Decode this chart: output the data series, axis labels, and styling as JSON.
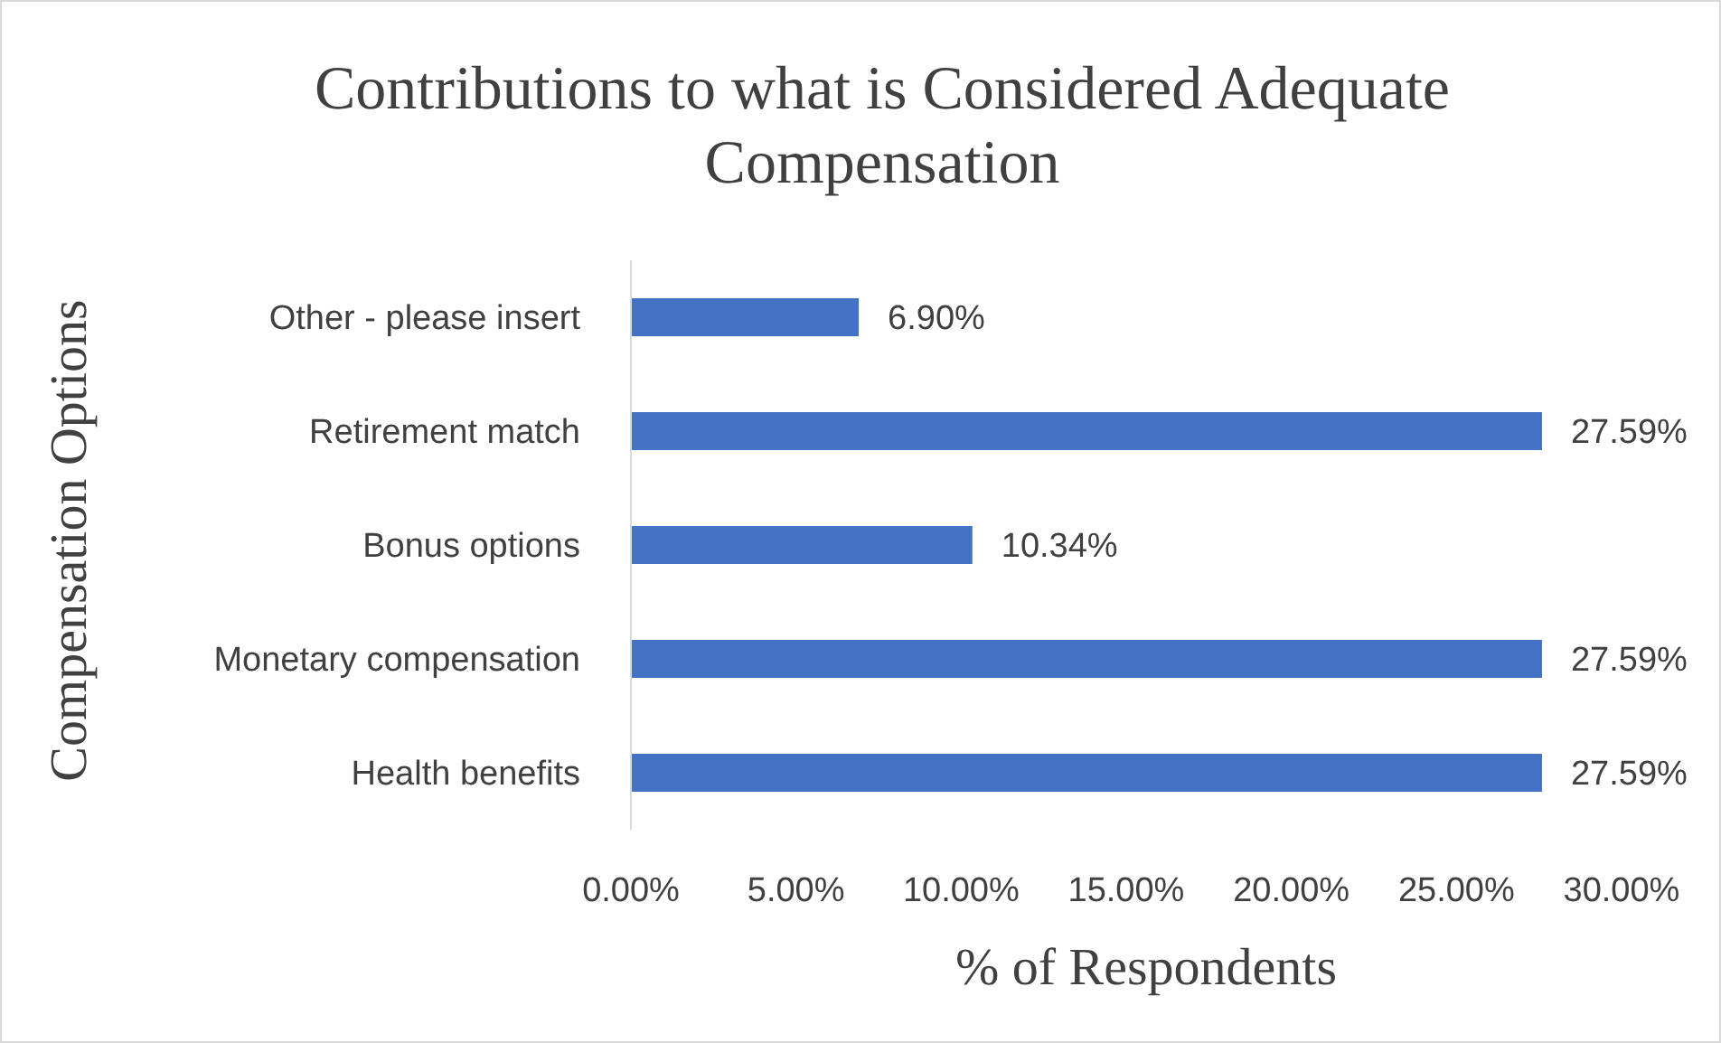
{
  "chart_data": {
    "type": "bar",
    "orientation": "horizontal",
    "title": "Contributions to what is Considered Adequate Compensation",
    "xlabel": "% of Respondents",
    "ylabel": "Compensation Options",
    "categories": [
      "Other - please insert",
      "Retirement match",
      "Bonus options",
      "Monetary compensation",
      "Health benefits"
    ],
    "values": [
      6.9,
      27.59,
      10.34,
      27.59,
      27.59
    ],
    "value_labels": [
      "6.90%",
      "27.59%",
      "10.34%",
      "27.59%",
      "27.59%"
    ],
    "color": "#4472c4",
    "xlim": [
      0,
      30
    ],
    "xticks": [
      {
        "value": 0,
        "label": "0.00%"
      },
      {
        "value": 5,
        "label": "5.00%"
      },
      {
        "value": 10,
        "label": "10.00%"
      },
      {
        "value": 15,
        "label": "15.00%"
      },
      {
        "value": 20,
        "label": "20.00%"
      },
      {
        "value": 25,
        "label": "25.00%"
      },
      {
        "value": 30,
        "label": "30.00%"
      }
    ]
  }
}
